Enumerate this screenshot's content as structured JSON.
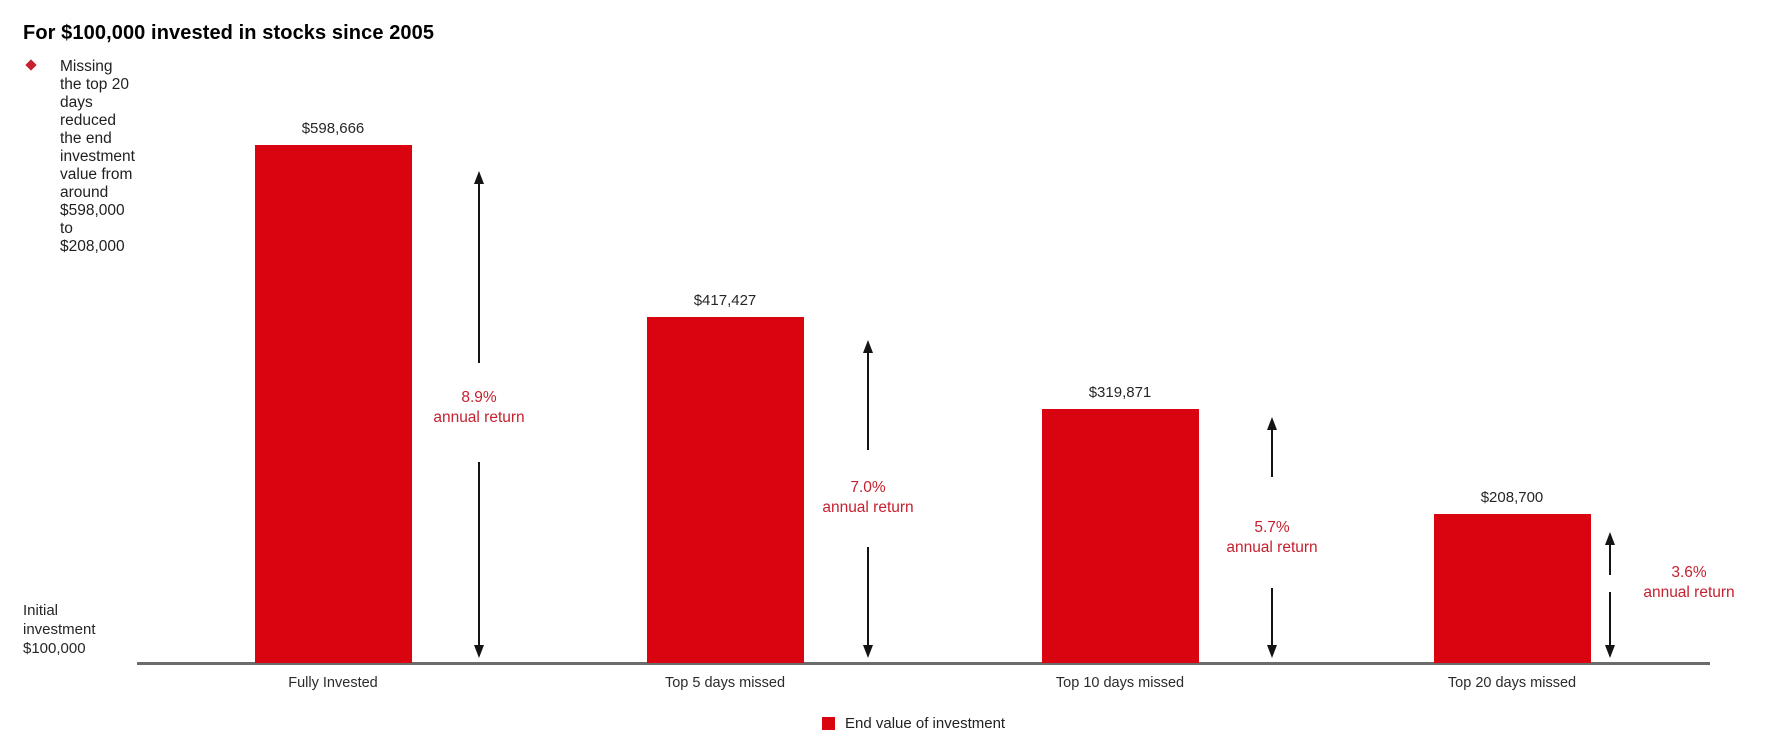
{
  "header": {
    "title": "For $100,000 invested in stocks since 2005",
    "subtitle": "Missing the top 20 days reduced the end investment value from around $598,000 to $208,000"
  },
  "baseline_label": "Initial\ninvestment\n$100,000",
  "legend": {
    "label": "End value of investment"
  },
  "colors": {
    "bar_red": "#da0410",
    "annotation_red": "#c5212f",
    "axis_gray": "#6b6b6b"
  },
  "chart_data": {
    "type": "bar",
    "title": "For $100,000 invested in stocks since 2005",
    "subtitle": "Missing the top 20 days reduced the end investment value from around $598,000 to $208,000",
    "categories": [
      "Fully Invested",
      "Top 5 days missed",
      "Top 10 days missed",
      "Top 20 days missed"
    ],
    "values": [
      598666,
      417427,
      319871,
      208700
    ],
    "value_labels": [
      "$598,666",
      "$417,427",
      "$319,871",
      "$208,700"
    ],
    "annual_returns": [
      "8.9%",
      "7.0%",
      "5.7%",
      "3.6%"
    ],
    "annual_return_word": "annual return",
    "series_name": "End value of investment",
    "baseline": {
      "label": "Initial investment $100,000",
      "value": 100000
    },
    "grid": false,
    "legend_position": "bottom-center",
    "bar_color": "#da0410",
    "annotation_color": "#c5212f"
  }
}
